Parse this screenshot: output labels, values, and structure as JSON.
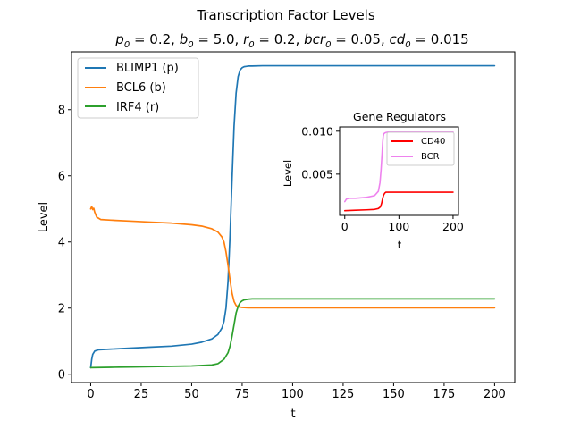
{
  "chart_data": [
    {
      "type": "line",
      "title": "Transcription Factor Levels",
      "subtitle": "p0 = 0.2, b0 = 5.0, r0 = 0.2, bcr0 = 0.05, cd0 = 0.015",
      "xlabel": "t",
      "ylabel": "Level",
      "xlim": [
        -9.5,
        210
      ],
      "ylim": [
        -0.25,
        9.75
      ],
      "xticks": [
        0,
        25,
        50,
        75,
        100,
        125,
        150,
        175,
        200
      ],
      "yticks": [
        0,
        2,
        4,
        6,
        8
      ],
      "grid": false,
      "legend": "top-left",
      "series": [
        {
          "name": "BLIMP1 (p)",
          "color": "#1f77b4",
          "x": [
            0,
            0.5,
            1,
            2,
            4,
            10,
            20,
            30,
            40,
            50,
            55,
            60,
            63,
            65,
            66,
            67,
            68,
            69,
            70,
            71,
            72,
            73,
            74,
            75,
            76,
            77,
            78,
            80,
            85,
            100,
            150,
            200
          ],
          "y": [
            0.2,
            0.45,
            0.6,
            0.7,
            0.74,
            0.76,
            0.79,
            0.82,
            0.85,
            0.91,
            0.97,
            1.07,
            1.2,
            1.4,
            1.6,
            2.0,
            2.8,
            4.2,
            5.9,
            7.5,
            8.5,
            9.0,
            9.2,
            9.27,
            9.3,
            9.31,
            9.32,
            9.32,
            9.33,
            9.33,
            9.33,
            9.33
          ]
        },
        {
          "name": "BCL6 (b)",
          "color": "#ff7f0e",
          "x": [
            0,
            0.5,
            1,
            1.5,
            2,
            3,
            5,
            10,
            20,
            30,
            40,
            50,
            55,
            60,
            63,
            65,
            66,
            67,
            68,
            69,
            70,
            71,
            72,
            73,
            75,
            78,
            80,
            90,
            100,
            150,
            200
          ],
          "y": [
            5.0,
            5.07,
            4.98,
            5.02,
            4.9,
            4.75,
            4.68,
            4.66,
            4.63,
            4.6,
            4.57,
            4.52,
            4.48,
            4.4,
            4.3,
            4.15,
            4.0,
            3.7,
            3.3,
            2.85,
            2.45,
            2.2,
            2.08,
            2.04,
            2.02,
            2.01,
            2.01,
            2.01,
            2.01,
            2.01,
            2.01
          ]
        },
        {
          "name": "IRF4 (r)",
          "color": "#2ca02c",
          "x": [
            0,
            10,
            20,
            30,
            40,
            50,
            60,
            63,
            66,
            68,
            69,
            70,
            71,
            72,
            73,
            74,
            75,
            76,
            78,
            80,
            90,
            100,
            150,
            200
          ],
          "y": [
            0.2,
            0.21,
            0.22,
            0.23,
            0.24,
            0.25,
            0.28,
            0.32,
            0.45,
            0.65,
            0.85,
            1.15,
            1.5,
            1.85,
            2.05,
            2.17,
            2.22,
            2.25,
            2.27,
            2.28,
            2.28,
            2.28,
            2.28,
            2.28
          ]
        }
      ]
    },
    {
      "type": "line",
      "title": "Gene Regulators",
      "xlabel": "t",
      "ylabel": "Level",
      "xlim": [
        -9.5,
        210
      ],
      "ylim": [
        0.0002,
        0.0105
      ],
      "xticks": [
        0,
        100,
        200
      ],
      "yticks": [
        0.005,
        0.01
      ],
      "ytick_labels": [
        "0.005",
        "0.010"
      ],
      "grid": false,
      "legend": "top-right",
      "series": [
        {
          "name": "CD40",
          "color": "#ff0000",
          "x": [
            0,
            20,
            40,
            55,
            62,
            66,
            68,
            70,
            72,
            74,
            76,
            80,
            100,
            150,
            200
          ],
          "y": [
            0.00075,
            0.0008,
            0.00085,
            0.0009,
            0.001,
            0.0012,
            0.0016,
            0.0022,
            0.0026,
            0.0028,
            0.0029,
            0.0029,
            0.0029,
            0.0029,
            0.0029
          ]
        },
        {
          "name": "BCR",
          "color": "#ee82ee",
          "x": [
            0,
            3,
            8,
            20,
            40,
            55,
            62,
            65,
            67,
            69,
            70,
            71,
            72,
            74,
            76,
            80,
            100,
            150,
            200
          ],
          "y": [
            0.0018,
            0.0021,
            0.0022,
            0.0022,
            0.0023,
            0.0025,
            0.003,
            0.004,
            0.0055,
            0.0075,
            0.0087,
            0.0094,
            0.0097,
            0.0098,
            0.00985,
            0.0099,
            0.0099,
            0.0099,
            0.0099
          ]
        }
      ]
    }
  ]
}
